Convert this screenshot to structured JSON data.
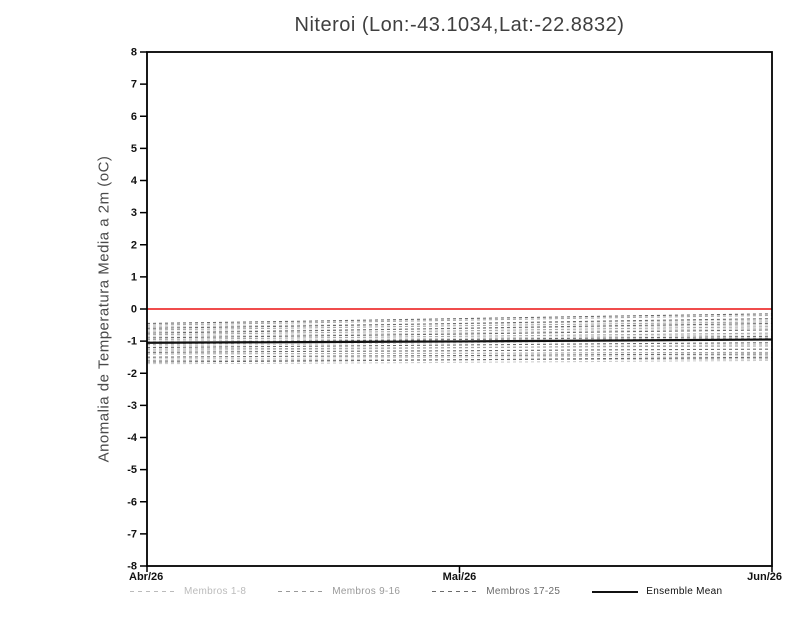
{
  "chart_data": {
    "type": "line",
    "title": "Niteroi (Lon:-43.1034,Lat:-22.8832)",
    "ylabel": "Anomalia de Temperatura Media a 2m (oC)",
    "xlabel": "",
    "ylim": [
      -8,
      8
    ],
    "ytick_step": 1,
    "x_ticks": [
      "Abr/26",
      "Mai/26",
      "Jun/26"
    ],
    "x_points": [
      0,
      0.25,
      0.5,
      0.75,
      1
    ],
    "grid": false,
    "zero_line": {
      "y": 0,
      "color": "#ee3333"
    },
    "groups": [
      {
        "name": "Membros 1-8",
        "color": "#cccccc",
        "line_style": "dashed",
        "members": [
          [
            -0.55,
            -0.5,
            -0.46,
            -0.4,
            -0.35
          ],
          [
            -0.7,
            -0.66,
            -0.61,
            -0.55,
            -0.5
          ],
          [
            -0.85,
            -0.8,
            -0.74,
            -0.67,
            -0.6
          ],
          [
            -1.0,
            -0.96,
            -0.91,
            -0.85,
            -0.8
          ],
          [
            -1.15,
            -1.1,
            -1.05,
            -1.0,
            -0.95
          ],
          [
            -1.3,
            -1.26,
            -1.21,
            -1.15,
            -1.1
          ],
          [
            -1.55,
            -1.53,
            -1.5,
            -1.47,
            -1.45
          ],
          [
            -1.7,
            -1.69,
            -1.66,
            -1.63,
            -1.6
          ]
        ]
      },
      {
        "name": "Membros 9-16",
        "color": "#a6a6a6",
        "line_style": "dashed",
        "members": [
          [
            -0.5,
            -0.43,
            -0.35,
            -0.27,
            -0.2
          ],
          [
            -0.65,
            -0.59,
            -0.52,
            -0.46,
            -0.4
          ],
          [
            -0.8,
            -0.74,
            -0.68,
            -0.61,
            -0.55
          ],
          [
            -0.95,
            -0.9,
            -0.85,
            -0.8,
            -0.75
          ],
          [
            -1.1,
            -1.05,
            -1.0,
            -0.95,
            -0.9
          ],
          [
            -1.25,
            -1.23,
            -1.2,
            -1.17,
            -1.15
          ],
          [
            -1.4,
            -1.39,
            -1.38,
            -1.36,
            -1.35
          ],
          [
            -1.6,
            -1.59,
            -1.58,
            -1.56,
            -1.55
          ]
        ]
      },
      {
        "name": "Membros 17-25",
        "color": "#6b6b6b",
        "line_style": "dashed",
        "members": [
          [
            -0.45,
            -0.38,
            -0.3,
            -0.22,
            -0.15
          ],
          [
            -0.6,
            -0.53,
            -0.45,
            -0.37,
            -0.3
          ],
          [
            -0.75,
            -0.68,
            -0.6,
            -0.52,
            -0.45
          ],
          [
            -0.9,
            -0.84,
            -0.78,
            -0.71,
            -0.65
          ],
          [
            -1.05,
            -1.0,
            -0.95,
            -0.9,
            -0.85
          ],
          [
            -1.2,
            -1.16,
            -1.12,
            -1.08,
            -1.05
          ],
          [
            -1.35,
            -1.32,
            -1.3,
            -1.27,
            -1.25
          ],
          [
            -1.5,
            -1.47,
            -1.45,
            -1.42,
            -1.4
          ],
          [
            -1.65,
            -1.62,
            -1.58,
            -1.54,
            -1.5
          ]
        ]
      }
    ],
    "ensemble_mean": {
      "name": "Ensemble Mean",
      "color": "#111111",
      "line_style": "solid",
      "values": [
        -1.05,
        -1.03,
        -1.01,
        -0.98,
        -0.95
      ]
    }
  },
  "legend": [
    {
      "label": "Membros 1-8",
      "color": "#bbbbbb",
      "style": "dashed"
    },
    {
      "label": "Membros 9-16",
      "color": "#9a9a9a",
      "style": "dashed"
    },
    {
      "label": "Membros 17-25",
      "color": "#6b6b6b",
      "style": "dashed"
    },
    {
      "label": "Ensemble Mean",
      "color": "#111111",
      "style": "solid"
    }
  ]
}
